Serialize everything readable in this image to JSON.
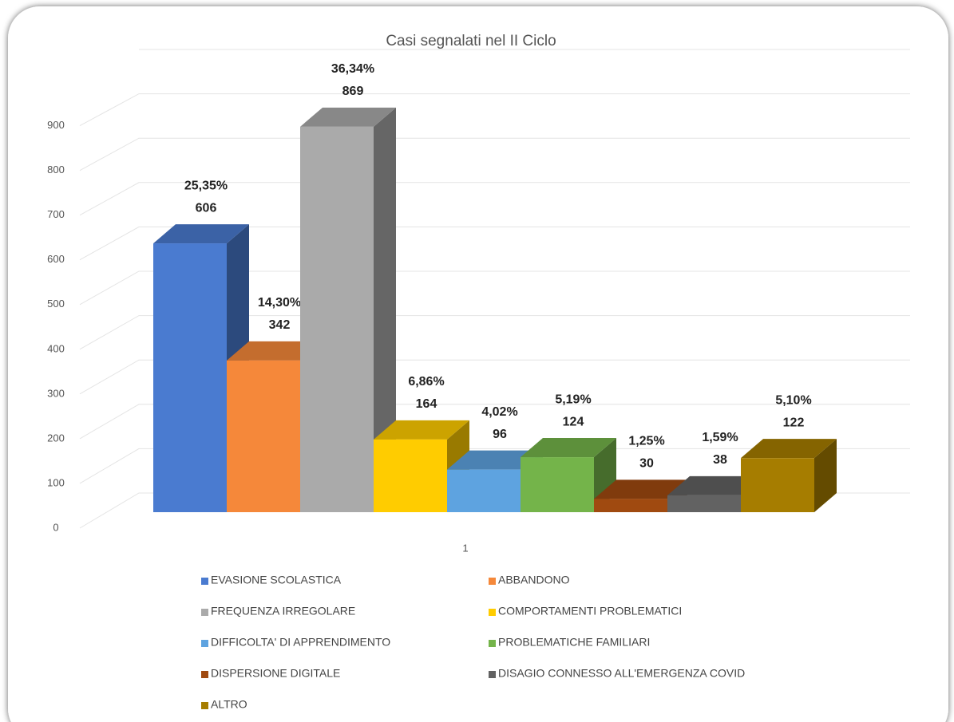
{
  "chart_data": {
    "type": "bar3d",
    "title": "Casi segnalati nel II Ciclo",
    "categories": [
      "1"
    ],
    "ylim": [
      0,
      1000
    ],
    "yticks": [
      0,
      100,
      200,
      300,
      400,
      500,
      600,
      700,
      800,
      900
    ],
    "grid": true,
    "series": [
      {
        "name": "EVASIONE SCOLASTICA",
        "color": "#4a7bd0",
        "values": [
          606
        ],
        "shares": [
          25.35
        ],
        "share_labels": [
          "25,35%"
        ]
      },
      {
        "name": "ABBANDONO",
        "color": "#f5883a",
        "values": [
          342
        ],
        "shares": [
          14.3
        ],
        "share_labels": [
          "14,30%"
        ]
      },
      {
        "name": "FREQUENZA IRREGOLARE",
        "color": "#aaaaaa",
        "values": [
          869
        ],
        "shares": [
          36.34
        ],
        "share_labels": [
          "36,34%"
        ]
      },
      {
        "name": "COMPORTAMENTI PROBLEMATICI",
        "color": "#ffcc00",
        "values": [
          164
        ],
        "shares": [
          6.86
        ],
        "share_labels": [
          "6,86%"
        ]
      },
      {
        "name": "DIFFICOLTA' DI APPRENDIMENTO",
        "color": "#5ea3e0",
        "values": [
          96
        ],
        "shares": [
          4.02
        ],
        "share_labels": [
          "4,02%"
        ]
      },
      {
        "name": "PROBLEMATICHE FAMILIARI",
        "color": "#74b44a",
        "values": [
          124
        ],
        "shares": [
          5.19
        ],
        "share_labels": [
          "5,19%"
        ]
      },
      {
        "name": "DISPERSIONE DIGITALE",
        "color": "#a04a10",
        "values": [
          30
        ],
        "shares": [
          1.25
        ],
        "share_labels": [
          "1,25%"
        ]
      },
      {
        "name": "DISAGIO CONNESSO ALL'EMERGENZA COVID",
        "color": "#626262",
        "values": [
          38
        ],
        "shares": [
          1.59
        ],
        "share_labels": [
          "1,59%"
        ]
      },
      {
        "name": "ALTRO",
        "color": "#a67d00",
        "values": [
          122
        ],
        "shares": [
          5.1
        ],
        "share_labels": [
          "5,10%"
        ]
      }
    ]
  }
}
